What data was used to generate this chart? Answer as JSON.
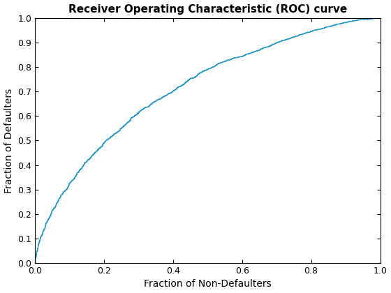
{
  "title": "Receiver Operating Characteristic (ROC) curve",
  "xlabel": "Fraction of Non-Defaulters",
  "ylabel": "Fraction of Defaulters",
  "line_color": "#2196c8",
  "line_width": 1.0,
  "xlim": [
    0,
    1
  ],
  "ylim": [
    0,
    1
  ],
  "xticks": [
    0,
    0.2,
    0.4,
    0.6,
    0.8,
    1.0
  ],
  "yticks": [
    0,
    0.1,
    0.2,
    0.3,
    0.4,
    0.5,
    0.6,
    0.7,
    0.8,
    0.9,
    1.0
  ],
  "figsize": [
    5.6,
    4.2
  ],
  "dpi": 100,
  "title_fontsize": 11,
  "label_fontsize": 10
}
